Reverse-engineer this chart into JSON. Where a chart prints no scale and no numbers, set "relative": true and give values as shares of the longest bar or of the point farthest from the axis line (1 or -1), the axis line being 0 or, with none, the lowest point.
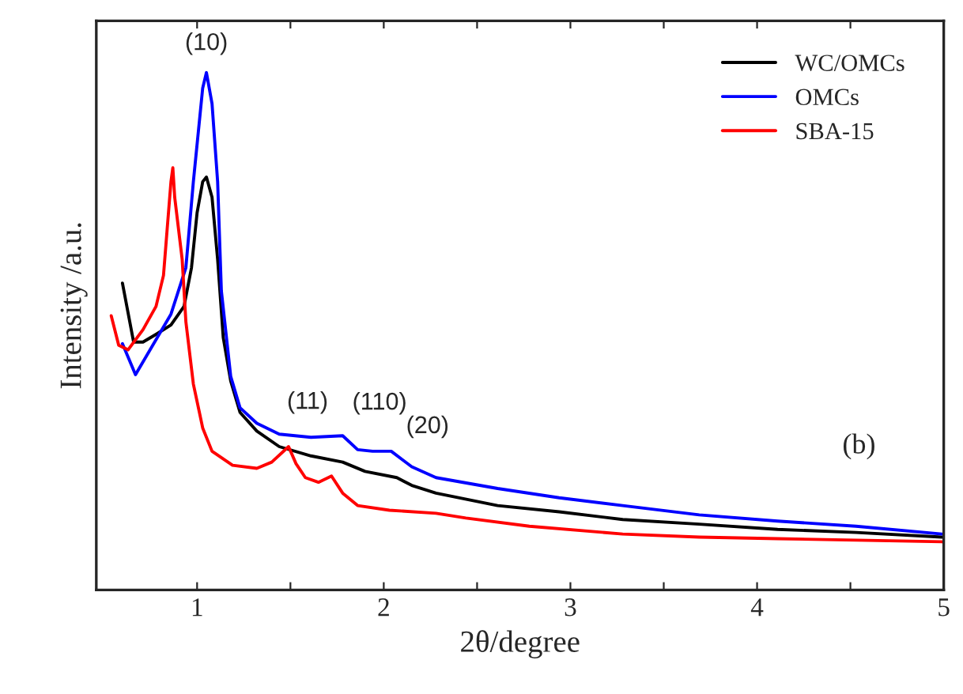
{
  "chart_data": {
    "type": "line",
    "relative": true,
    "xlabel": "2θ/degree",
    "ylabel": "Intensity /a.u.",
    "xlim": [
      0.46,
      5
    ],
    "xticks": [
      1,
      {
        "value": 1.5,
        "label": null
      },
      2,
      {
        "value": 2.5,
        "label": null
      },
      3,
      {
        "value": 3.5,
        "label": null
      },
      4,
      {
        "value": 4.5,
        "label": null
      },
      5
    ],
    "legend": "top right",
    "grid": false,
    "line_style": "solid",
    "marker": "none",
    "annotations": [
      {
        "text": "(10)",
        "x": 1.05,
        "y": 1.0
      },
      {
        "text": "(11)",
        "x": 1.78,
        "y": 0.298
      },
      {
        "text": "(110)",
        "x": 1.86,
        "y": 0.271
      },
      {
        "text": "(20)",
        "x": 2.07,
        "y": 0.268
      },
      "(b)"
    ],
    "series": [
      {
        "name": "WC/OMCs",
        "color": "#000000",
        "x": [
          0.6,
          0.66,
          0.71,
          0.78,
          0.86,
          0.93,
          0.97,
          1.0,
          1.03,
          1.05,
          1.08,
          1.11,
          1.14,
          1.18,
          1.23,
          1.32,
          1.44,
          1.61,
          1.78,
          1.9,
          2.07,
          2.15,
          2.28,
          2.61,
          2.94,
          3.28,
          3.69,
          4.11,
          4.53,
          4.99
        ],
        "values": [
          0.593,
          0.479,
          0.479,
          0.494,
          0.512,
          0.548,
          0.623,
          0.729,
          0.789,
          0.798,
          0.759,
          0.639,
          0.488,
          0.404,
          0.343,
          0.307,
          0.277,
          0.259,
          0.247,
          0.229,
          0.217,
          0.202,
          0.187,
          0.163,
          0.151,
          0.136,
          0.127,
          0.117,
          0.111,
          0.102
        ]
      },
      {
        "name": "OMCs",
        "color": "#0000ff",
        "x": [
          0.6,
          0.67,
          0.86,
          0.94,
          0.98,
          1.03,
          1.05,
          1.08,
          1.11,
          1.13,
          1.18,
          1.23,
          1.32,
          1.44,
          1.61,
          1.78,
          1.86,
          1.94,
          2.04,
          2.15,
          2.28,
          2.61,
          2.94,
          3.28,
          3.69,
          4.11,
          4.53,
          4.99
        ],
        "values": [
          0.476,
          0.416,
          0.533,
          0.623,
          0.789,
          0.97,
          1.0,
          0.94,
          0.789,
          0.578,
          0.413,
          0.352,
          0.322,
          0.301,
          0.295,
          0.298,
          0.271,
          0.268,
          0.268,
          0.238,
          0.217,
          0.196,
          0.178,
          0.163,
          0.145,
          0.133,
          0.123,
          0.108
        ]
      },
      {
        "name": "SBA-15",
        "color": "#ff0000",
        "x": [
          0.54,
          0.58,
          0.63,
          0.71,
          0.78,
          0.82,
          0.84,
          0.86,
          0.87,
          0.88,
          0.92,
          0.94,
          0.98,
          1.03,
          1.08,
          1.19,
          1.32,
          1.4,
          1.49,
          1.53,
          1.58,
          1.65,
          1.72,
          1.78,
          1.86,
          2.03,
          2.28,
          2.44,
          2.78,
          3.28,
          3.69,
          4.11,
          4.99
        ],
        "values": [
          0.53,
          0.473,
          0.464,
          0.503,
          0.548,
          0.608,
          0.699,
          0.789,
          0.816,
          0.759,
          0.639,
          0.518,
          0.398,
          0.313,
          0.268,
          0.241,
          0.235,
          0.247,
          0.277,
          0.244,
          0.217,
          0.208,
          0.22,
          0.187,
          0.163,
          0.154,
          0.148,
          0.139,
          0.123,
          0.108,
          0.102,
          0.099,
          0.093
        ]
      }
    ]
  }
}
